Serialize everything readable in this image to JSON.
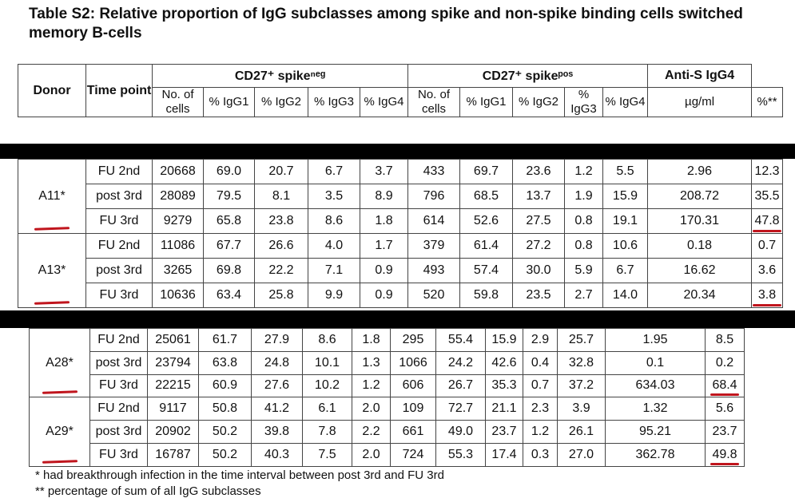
{
  "title": "Table S2: Relative proportion of IgG subclasses among spike and non-spike binding cells switched memory B-cells",
  "header": {
    "donor": "Donor",
    "time_point": "Time point",
    "group_neg": "CD27⁺ spikeⁿᵉᵍ",
    "group_pos": "CD27⁺ spikeᵖᵒˢ",
    "group_anti": "Anti-S IgG4",
    "no_of_cells": "No. of cells",
    "igg1": "% IgG1",
    "igg2": "% IgG2",
    "igg3": "% IgG3",
    "igg4": "% IgG4",
    "ugml": "µg/ml",
    "pct": "%**"
  },
  "rows_a": [
    {
      "donor": "A11*",
      "tp": "FU 2nd",
      "c": [
        "20668",
        "69.0",
        "20.7",
        "6.7",
        "3.7",
        "433",
        "69.7",
        "23.6",
        "1.2",
        "5.5",
        "2.96",
        "12.3"
      ]
    },
    {
      "donor": "",
      "tp": "post 3rd",
      "c": [
        "28089",
        "79.5",
        "8.1",
        "3.5",
        "8.9",
        "796",
        "68.5",
        "13.7",
        "1.9",
        "15.9",
        "208.72",
        "35.5"
      ]
    },
    {
      "donor": "",
      "tp": "FU 3rd",
      "c": [
        "9279",
        "65.8",
        "23.8",
        "8.6",
        "1.8",
        "614",
        "52.6",
        "27.5",
        "0.8",
        "19.1",
        "170.31",
        "47.8"
      ]
    },
    {
      "donor": "A13*",
      "tp": "FU 2nd",
      "c": [
        "11086",
        "67.7",
        "26.6",
        "4.0",
        "1.7",
        "379",
        "61.4",
        "27.2",
        "0.8",
        "10.6",
        "0.18",
        "0.7"
      ]
    },
    {
      "donor": "",
      "tp": "post 3rd",
      "c": [
        "3265",
        "69.8",
        "22.2",
        "7.1",
        "0.9",
        "493",
        "57.4",
        "30.0",
        "5.9",
        "6.7",
        "16.62",
        "3.6"
      ]
    },
    {
      "donor": "",
      "tp": "FU 3rd",
      "c": [
        "10636",
        "63.4",
        "25.8",
        "9.9",
        "0.9",
        "520",
        "59.8",
        "23.5",
        "2.7",
        "14.0",
        "20.34",
        "3.8"
      ]
    }
  ],
  "rows_b": [
    {
      "donor": "A28*",
      "tp": "FU 2nd",
      "c": [
        "25061",
        "61.7",
        "27.9",
        "8.6",
        "1.8",
        "295",
        "55.4",
        "15.9",
        "2.9",
        "25.7",
        "1.95",
        "8.5"
      ]
    },
    {
      "donor": "",
      "tp": "post 3rd",
      "c": [
        "23794",
        "63.8",
        "24.8",
        "10.1",
        "1.3",
        "1066",
        "24.2",
        "42.6",
        "0.4",
        "32.8",
        "0.1",
        "0.2"
      ]
    },
    {
      "donor": "",
      "tp": "FU 3rd",
      "c": [
        "22215",
        "60.9",
        "27.6",
        "10.2",
        "1.2",
        "606",
        "26.7",
        "35.3",
        "0.7",
        "37.2",
        "634.03",
        "68.4"
      ]
    },
    {
      "donor": "A29*",
      "tp": "FU 2nd",
      "c": [
        "9117",
        "50.8",
        "41.2",
        "6.1",
        "2.0",
        "109",
        "72.7",
        "21.1",
        "2.3",
        "3.9",
        "1.32",
        "5.6"
      ]
    },
    {
      "donor": "",
      "tp": "post 3rd",
      "c": [
        "20902",
        "50.2",
        "39.8",
        "7.8",
        "2.2",
        "661",
        "49.0",
        "23.7",
        "1.2",
        "26.1",
        "95.21",
        "23.7"
      ]
    },
    {
      "donor": "",
      "tp": "FU 3rd",
      "c": [
        "16787",
        "50.2",
        "40.3",
        "7.5",
        "2.0",
        "724",
        "55.3",
        "17.4",
        "0.3",
        "27.0",
        "362.78",
        "49.8"
      ]
    }
  ],
  "footnotes": [
    "* had breakthrough infection in the time interval between post 3rd and FU 3rd",
    "** percentage of sum of all IgG subclasses"
  ],
  "colors": {
    "annotation_red": "#c0151d",
    "band": "#000000"
  }
}
